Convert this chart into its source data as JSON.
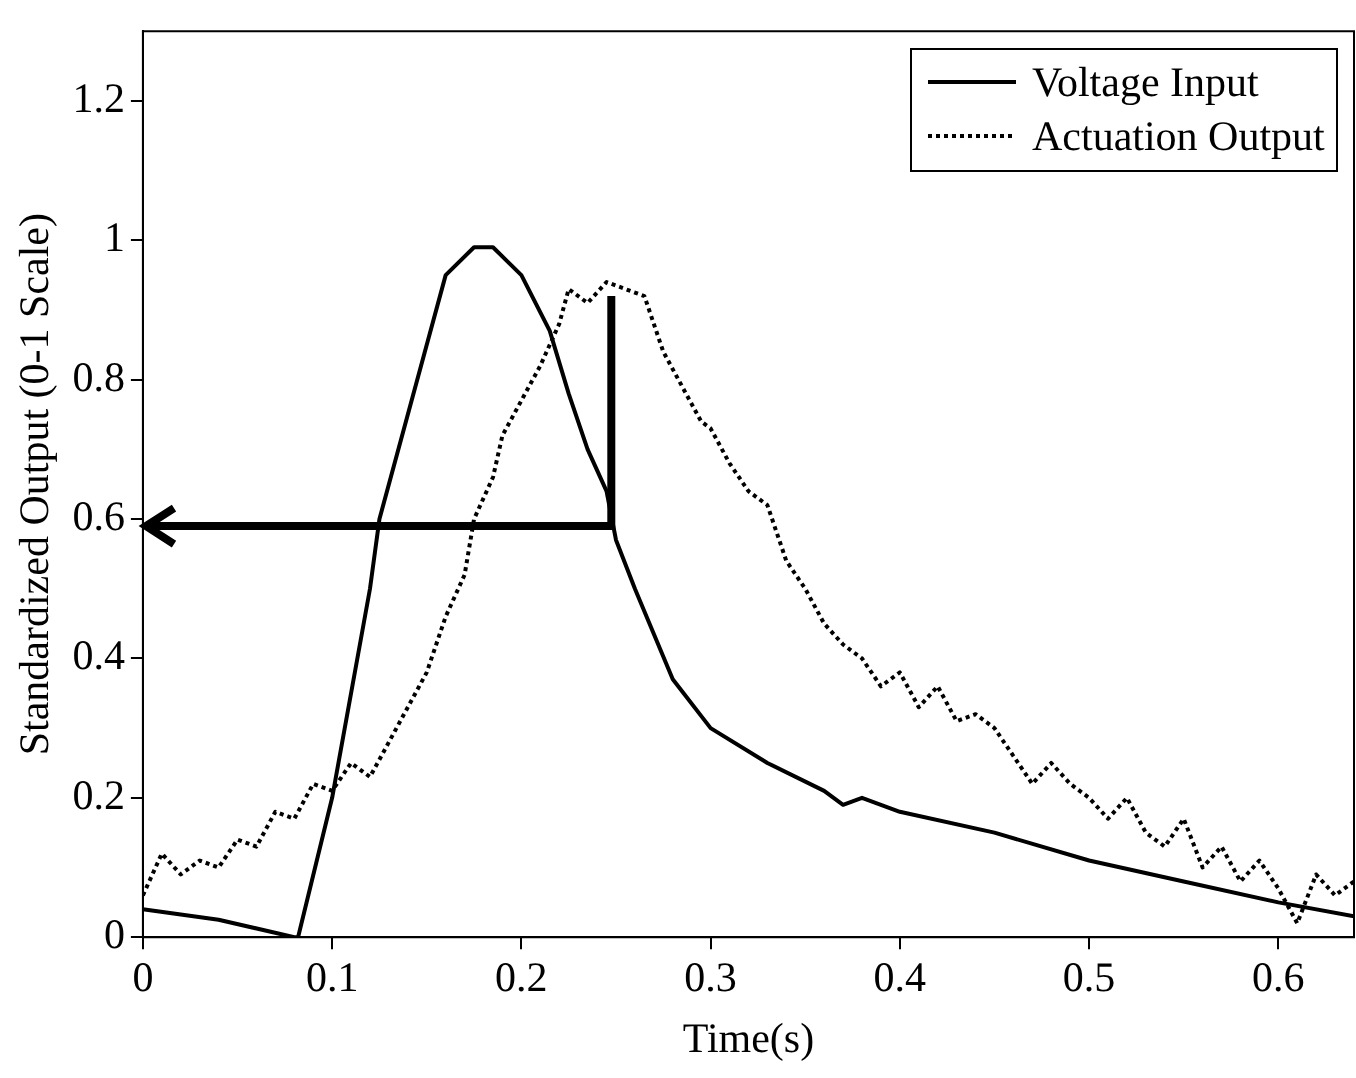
{
  "chart_data": {
    "type": "line",
    "xlabel": "Time(s)",
    "ylabel": "Standardized Output (0-1 Scale)",
    "xlim": [
      0,
      0.64
    ],
    "ylim": [
      0,
      1.3
    ],
    "xticks": [
      0,
      0.1,
      0.2,
      0.3,
      0.4,
      0.5,
      0.6
    ],
    "yticks": [
      0,
      0.2,
      0.4,
      0.6,
      0.8,
      1,
      1.2
    ],
    "grid": false,
    "legend": "top right",
    "marker": "none",
    "series": [
      {
        "name": "Voltage Input",
        "color": "#000000",
        "line_style": "solid",
        "x": [
          0,
          0.04,
          0.08,
          0.082,
          0.1,
          0.12,
          0.125,
          0.14,
          0.15,
          0.16,
          0.175,
          0.185,
          0.2,
          0.215,
          0.225,
          0.235,
          0.245,
          0.25,
          0.26,
          0.28,
          0.3,
          0.33,
          0.36,
          0.37,
          0.38,
          0.4,
          0.45,
          0.5,
          0.55,
          0.6,
          0.64
        ],
        "values": [
          0.04,
          0.025,
          0,
          0,
          0.2,
          0.5,
          0.6,
          0.75,
          0.85,
          0.95,
          0.99,
          0.99,
          0.95,
          0.87,
          0.78,
          0.7,
          0.64,
          0.57,
          0.5,
          0.37,
          0.3,
          0.25,
          0.21,
          0.19,
          0.2,
          0.18,
          0.15,
          0.11,
          0.08,
          0.05,
          0.03
        ]
      },
      {
        "name": "Actuation Output",
        "color": "#000000",
        "line_style": "dotted",
        "x": [
          0,
          0.01,
          0.02,
          0.03,
          0.04,
          0.05,
          0.06,
          0.07,
          0.08,
          0.09,
          0.1,
          0.11,
          0.12,
          0.13,
          0.14,
          0.15,
          0.16,
          0.17,
          0.175,
          0.185,
          0.19,
          0.2,
          0.21,
          0.22,
          0.225,
          0.235,
          0.245,
          0.255,
          0.265,
          0.275,
          0.285,
          0.295,
          0.3,
          0.31,
          0.32,
          0.33,
          0.34,
          0.35,
          0.36,
          0.37,
          0.38,
          0.39,
          0.4,
          0.41,
          0.42,
          0.43,
          0.44,
          0.45,
          0.46,
          0.47,
          0.48,
          0.49,
          0.5,
          0.51,
          0.52,
          0.53,
          0.54,
          0.55,
          0.56,
          0.57,
          0.58,
          0.59,
          0.6,
          0.61,
          0.62,
          0.63,
          0.64
        ],
        "values": [
          0.06,
          0.12,
          0.09,
          0.11,
          0.1,
          0.14,
          0.13,
          0.18,
          0.17,
          0.22,
          0.21,
          0.25,
          0.23,
          0.28,
          0.33,
          0.38,
          0.46,
          0.52,
          0.6,
          0.66,
          0.72,
          0.77,
          0.82,
          0.88,
          0.93,
          0.91,
          0.94,
          0.93,
          0.92,
          0.84,
          0.79,
          0.74,
          0.73,
          0.68,
          0.64,
          0.62,
          0.54,
          0.5,
          0.45,
          0.42,
          0.4,
          0.36,
          0.38,
          0.33,
          0.36,
          0.31,
          0.32,
          0.3,
          0.26,
          0.22,
          0.25,
          0.22,
          0.2,
          0.17,
          0.2,
          0.15,
          0.13,
          0.17,
          0.1,
          0.13,
          0.08,
          0.11,
          0.07,
          0.02,
          0.09,
          0.06,
          0.08
        ]
      }
    ]
  }
}
